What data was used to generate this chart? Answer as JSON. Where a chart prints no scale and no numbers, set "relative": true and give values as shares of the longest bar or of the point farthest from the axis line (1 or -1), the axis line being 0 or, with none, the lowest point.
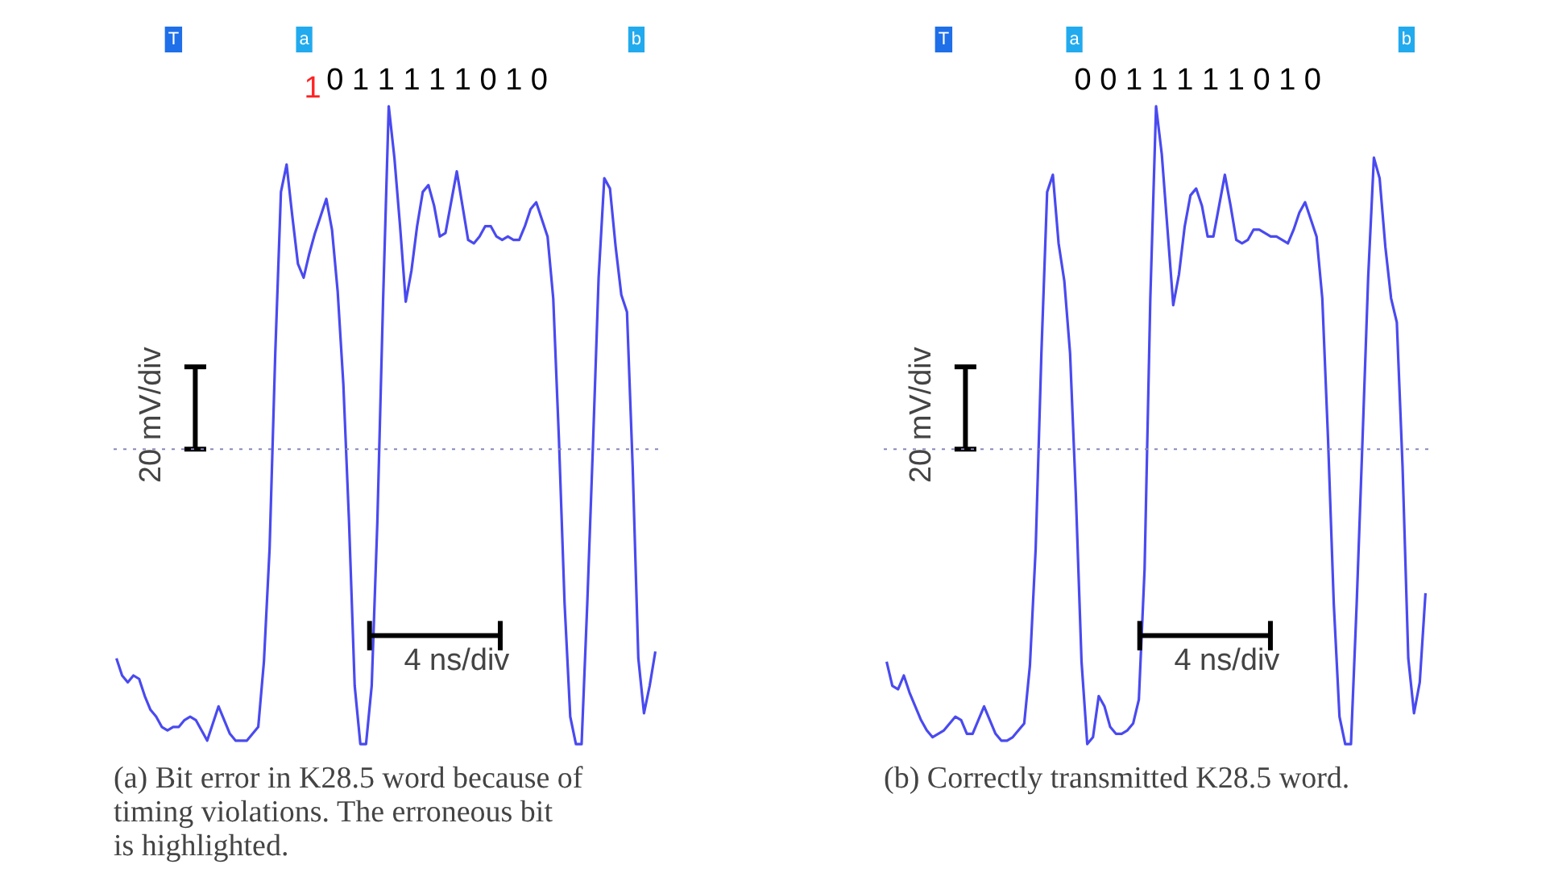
{
  "chart_data": [
    {
      "type": "line",
      "relative": true,
      "tick_labels": false,
      "title": "(a) Bit error in K28.5 word because of timing violations. The erroneous bit is highlighted.",
      "categories": [
        null,
        null,
        null,
        null,
        null,
        null,
        null,
        null,
        null,
        null,
        null,
        null,
        null,
        null,
        null,
        null,
        null,
        null,
        null,
        null,
        null,
        null,
        null,
        null,
        null,
        null,
        null,
        null,
        null,
        null,
        null,
        null,
        null,
        null,
        null,
        null,
        null,
        null,
        null,
        null,
        null,
        null,
        null,
        null,
        null,
        null,
        null,
        null,
        null,
        null,
        null,
        null,
        null,
        null,
        null,
        null,
        null,
        null,
        null,
        null,
        null,
        null,
        null,
        null,
        null,
        null,
        null,
        null,
        null,
        null,
        null,
        null,
        null,
        null,
        null,
        null,
        null,
        null,
        null,
        null,
        null,
        null,
        null,
        null,
        null,
        null,
        null,
        null,
        null,
        null,
        null,
        null,
        null,
        null,
        null,
        null
      ],
      "series": [
        {
          "color": "#4a4af0",
          "values": [
            -0.61,
            -0.66,
            -0.68,
            -0.66,
            -0.67,
            -0.72,
            -0.76,
            -0.78,
            -0.81,
            -0.82,
            -0.81,
            -0.81,
            -0.79,
            -0.78,
            -0.79,
            -0.82,
            -0.85,
            -0.8,
            -0.75,
            -0.79,
            -0.83,
            -0.85,
            -0.85,
            -0.85,
            -0.83,
            -0.81,
            -0.62,
            -0.29,
            0.28,
            0.75,
            0.83,
            0.68,
            0.54,
            0.5,
            0.57,
            0.63,
            0.68,
            0.73,
            0.64,
            0.46,
            0.19,
            -0.21,
            -0.69,
            -0.86,
            -0.86,
            -0.69,
            -0.21,
            0.43,
            1.0,
            0.85,
            0.65,
            0.43,
            0.52,
            0.65,
            0.75,
            0.77,
            0.71,
            0.62,
            0.63,
            0.72,
            0.81,
            0.71,
            0.61,
            0.6,
            0.62,
            0.65,
            0.65,
            0.62,
            0.61,
            0.62,
            0.61,
            0.61,
            0.65,
            0.7,
            0.72,
            0.67,
            0.62,
            0.44,
            0.03,
            -0.45,
            -0.78,
            -0.86,
            -0.86,
            -0.45,
            0.01,
            0.5,
            0.79,
            0.76,
            0.59,
            0.45,
            0.4,
            -0.05,
            -0.61,
            -0.77,
            -0.69,
            -0.59
          ]
        }
      ],
      "ref_lines": [
        {
          "axis": "y",
          "value": 0,
          "color": "#8888bb",
          "line_style": "dotted"
        }
      ],
      "annotations": [
        "T",
        "a",
        "b",
        "1",
        "0 1 1 1 1 1 0 1 0",
        "20 mV/div",
        "4 ns/div"
      ]
    },
    {
      "type": "line",
      "relative": true,
      "tick_labels": false,
      "title": "(b) Correctly transmitted K28.5 word.",
      "categories": [
        null,
        null,
        null,
        null,
        null,
        null,
        null,
        null,
        null,
        null,
        null,
        null,
        null,
        null,
        null,
        null,
        null,
        null,
        null,
        null,
        null,
        null,
        null,
        null,
        null,
        null,
        null,
        null,
        null,
        null,
        null,
        null,
        null,
        null,
        null,
        null,
        null,
        null,
        null,
        null,
        null,
        null,
        null,
        null,
        null,
        null,
        null,
        null,
        null,
        null,
        null,
        null,
        null,
        null,
        null,
        null,
        null,
        null,
        null,
        null,
        null,
        null,
        null,
        null,
        null,
        null,
        null,
        null,
        null,
        null,
        null,
        null,
        null,
        null,
        null,
        null,
        null,
        null,
        null,
        null,
        null,
        null,
        null,
        null,
        null,
        null,
        null,
        null,
        null,
        null,
        null,
        null,
        null,
        null,
        null
      ],
      "series": [
        {
          "color": "#4a4af0",
          "values": [
            -0.62,
            -0.69,
            -0.7,
            -0.66,
            -0.71,
            -0.75,
            -0.79,
            -0.82,
            -0.84,
            -0.83,
            -0.82,
            -0.8,
            -0.78,
            -0.79,
            -0.83,
            -0.83,
            -0.79,
            -0.75,
            -0.79,
            -0.83,
            -0.85,
            -0.85,
            -0.84,
            -0.82,
            -0.8,
            -0.63,
            -0.29,
            0.28,
            0.75,
            0.8,
            0.6,
            0.49,
            0.28,
            -0.13,
            -0.62,
            -0.86,
            -0.84,
            -0.72,
            -0.75,
            -0.81,
            -0.83,
            -0.83,
            -0.82,
            -0.8,
            -0.73,
            -0.35,
            0.44,
            1.0,
            0.86,
            0.64,
            0.42,
            0.51,
            0.65,
            0.74,
            0.76,
            0.71,
            0.62,
            0.62,
            0.71,
            0.8,
            0.71,
            0.61,
            0.6,
            0.61,
            0.64,
            0.64,
            0.63,
            0.62,
            0.62,
            0.61,
            0.6,
            0.64,
            0.69,
            0.72,
            0.67,
            0.62,
            0.44,
            0.03,
            -0.45,
            -0.78,
            -0.86,
            -0.86,
            -0.45,
            0.02,
            0.5,
            0.85,
            0.79,
            0.59,
            0.44,
            0.37,
            -0.05,
            -0.61,
            -0.77,
            -0.68,
            -0.42
          ]
        }
      ],
      "ref_lines": [
        {
          "axis": "y",
          "value": 0,
          "color": "#8888bb",
          "line_style": "dotted"
        }
      ],
      "annotations": [
        "T",
        "a",
        "b",
        "0 0 1 1 1 1 1 0 1 0",
        "20 mV/div",
        "4 ns/div"
      ]
    }
  ]
}
